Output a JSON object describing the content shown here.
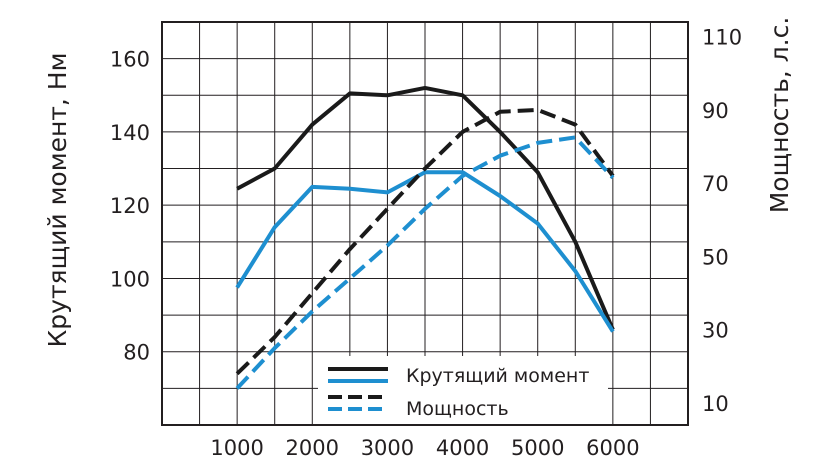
{
  "chart_data": {
    "type": "line",
    "title": "",
    "xlabel": "",
    "ylabel": "Крутящий момент, Нм",
    "y2label": "Мощность, л.с.",
    "x_ticks": [
      1000,
      2000,
      3000,
      4000,
      5000,
      6000
    ],
    "y_ticks": [
      80,
      100,
      120,
      140,
      160
    ],
    "y2_ticks": [
      10,
      30,
      50,
      70,
      90,
      110
    ],
    "xlim": [
      0,
      7000
    ],
    "ylim": [
      60,
      170
    ],
    "y2lim": [
      4,
      114
    ],
    "grid": true,
    "legend_position": "bottom-center",
    "series": [
      {
        "name": "Крутящий момент",
        "axis": "left",
        "style": "solid",
        "color": "#1a1a1a",
        "x": [
          1000,
          1500,
          2000,
          2500,
          3000,
          3500,
          4000,
          4500,
          5000,
          5500,
          6000
        ],
        "y": [
          124.5,
          130,
          142,
          150.5,
          150,
          152,
          150,
          140,
          129,
          110,
          86
        ]
      },
      {
        "name": "Крутящий момент",
        "axis": "left",
        "style": "solid",
        "color": "#1e8fd0",
        "x": [
          1000,
          1500,
          2000,
          2500,
          3000,
          3500,
          4000,
          4500,
          5000,
          5500,
          6000
        ],
        "y": [
          97.5,
          114,
          125,
          124.5,
          123.5,
          129,
          129,
          122.5,
          115,
          102,
          85.5
        ]
      },
      {
        "name": "Мощность",
        "axis": "right",
        "style": "dashed",
        "color": "#1a1a1a",
        "x": [
          1000,
          1500,
          2000,
          2500,
          3000,
          3500,
          4000,
          4500,
          5000,
          5500,
          6000
        ],
        "y": [
          18,
          28,
          40,
          52,
          63,
          74,
          84,
          89.5,
          90,
          86,
          72
        ]
      },
      {
        "name": "Мощность",
        "axis": "right",
        "style": "dashed",
        "color": "#1e8fd0",
        "x": [
          1000,
          1500,
          2000,
          2500,
          3000,
          3500,
          4000,
          4500,
          5000,
          5500,
          6000
        ],
        "y": [
          14,
          25,
          35,
          44,
          53,
          63,
          72,
          77.5,
          81,
          82.5,
          71.5
        ]
      }
    ],
    "legend": [
      {
        "label": "Крутящий момент",
        "style": "solid"
      },
      {
        "label": "Мощность",
        "style": "dashed"
      }
    ]
  }
}
